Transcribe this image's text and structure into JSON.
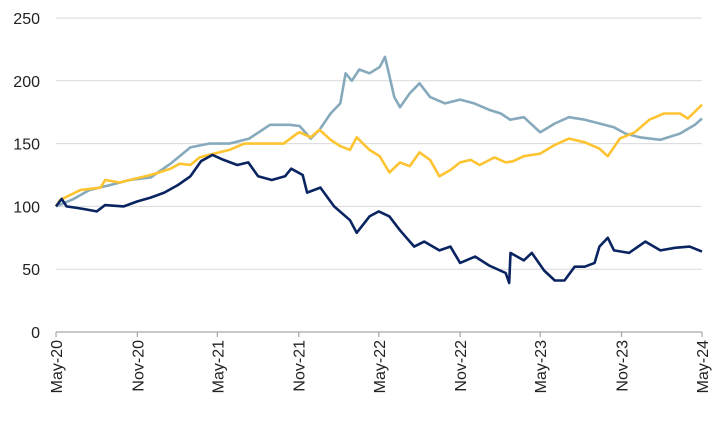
{
  "chart_data": {
    "type": "line",
    "title": "",
    "xlabel": "",
    "ylabel": "",
    "ylim": [
      0,
      250
    ],
    "yticks": [
      0,
      50,
      100,
      150,
      200,
      250
    ],
    "xlim": [
      "2020-05-01",
      "2024-05-01"
    ],
    "xticks": [
      {
        "date": "2020-05-01",
        "label": "May-20"
      },
      {
        "date": "2020-11-01",
        "label": "Nov-20"
      },
      {
        "date": "2021-05-01",
        "label": "May-21"
      },
      {
        "date": "2021-11-01",
        "label": "Nov-21"
      },
      {
        "date": "2022-05-01",
        "label": "May-22"
      },
      {
        "date": "2022-11-01",
        "label": "Nov-22"
      },
      {
        "date": "2023-05-01",
        "label": "May-23"
      },
      {
        "date": "2023-11-01",
        "label": "Nov-23"
      },
      {
        "date": "2024-05-01",
        "label": "May-24"
      }
    ],
    "grid": "horizontal",
    "legend": "none",
    "series": [
      {
        "color": "#86a9bc",
        "points": [
          [
            "2020-05-01",
            100
          ],
          [
            "2020-06-10",
            106
          ],
          [
            "2020-07-15",
            113
          ],
          [
            "2020-09-01",
            117
          ],
          [
            "2020-10-15",
            121
          ],
          [
            "2020-12-01",
            123
          ],
          [
            "2021-01-15",
            134
          ],
          [
            "2021-03-01",
            147
          ],
          [
            "2021-04-12",
            150
          ],
          [
            "2021-05-28",
            150
          ],
          [
            "2021-07-12",
            154
          ],
          [
            "2021-08-28",
            165
          ],
          [
            "2021-10-12",
            165
          ],
          [
            "2021-11-03",
            164
          ],
          [
            "2021-11-28",
            154
          ],
          [
            "2021-12-18",
            161
          ],
          [
            "2022-01-12",
            174
          ],
          [
            "2022-02-03",
            182
          ],
          [
            "2022-02-15",
            206
          ],
          [
            "2022-03-01",
            200
          ],
          [
            "2022-03-18",
            209
          ],
          [
            "2022-04-10",
            206
          ],
          [
            "2022-05-03",
            211
          ],
          [
            "2022-05-15",
            219
          ],
          [
            "2022-06-05",
            187
          ],
          [
            "2022-06-18",
            179
          ],
          [
            "2022-07-10",
            190
          ],
          [
            "2022-08-01",
            198
          ],
          [
            "2022-08-25",
            187
          ],
          [
            "2022-09-28",
            182
          ],
          [
            "2022-11-01",
            185
          ],
          [
            "2022-12-03",
            182
          ],
          [
            "2023-01-05",
            177
          ],
          [
            "2023-02-01",
            174
          ],
          [
            "2023-02-22",
            169
          ],
          [
            "2023-03-25",
            171
          ],
          [
            "2023-05-01",
            159
          ],
          [
            "2023-06-03",
            166
          ],
          [
            "2023-07-05",
            171
          ],
          [
            "2023-08-10",
            169
          ],
          [
            "2023-09-12",
            166
          ],
          [
            "2023-10-15",
            163
          ],
          [
            "2023-11-10",
            158
          ],
          [
            "2023-12-12",
            155
          ],
          [
            "2024-01-28",
            153
          ],
          [
            "2024-03-12",
            158
          ],
          [
            "2024-04-15",
            165
          ],
          [
            "2024-05-01",
            170
          ]
        ]
      },
      {
        "color": "#fdc331",
        "points": [
          [
            "2020-05-01",
            100
          ],
          [
            "2020-05-10",
            105
          ],
          [
            "2020-06-25",
            113
          ],
          [
            "2020-08-10",
            115
          ],
          [
            "2020-08-20",
            121
          ],
          [
            "2020-09-22",
            119
          ],
          [
            "2020-10-15",
            121
          ],
          [
            "2020-12-01",
            125
          ],
          [
            "2020-12-20",
            127
          ],
          [
            "2021-01-15",
            130
          ],
          [
            "2021-02-05",
            134
          ],
          [
            "2021-03-01",
            133
          ],
          [
            "2021-03-22",
            139
          ],
          [
            "2021-04-12",
            141
          ],
          [
            "2021-05-28",
            145
          ],
          [
            "2021-07-01",
            150
          ],
          [
            "2021-09-28",
            150
          ],
          [
            "2021-10-28",
            158
          ],
          [
            "2021-11-03",
            159
          ],
          [
            "2021-11-28",
            155
          ],
          [
            "2021-12-18",
            161
          ],
          [
            "2022-01-12",
            153
          ],
          [
            "2022-02-03",
            148
          ],
          [
            "2022-02-25",
            145
          ],
          [
            "2022-03-12",
            155
          ],
          [
            "2022-04-10",
            145
          ],
          [
            "2022-05-03",
            140
          ],
          [
            "2022-05-25",
            127
          ],
          [
            "2022-06-18",
            135
          ],
          [
            "2022-07-10",
            132
          ],
          [
            "2022-08-01",
            143
          ],
          [
            "2022-08-25",
            137
          ],
          [
            "2022-09-15",
            124
          ],
          [
            "2022-10-10",
            129
          ],
          [
            "2022-11-01",
            135
          ],
          [
            "2022-11-25",
            137
          ],
          [
            "2022-12-15",
            133
          ],
          [
            "2023-01-18",
            139
          ],
          [
            "2023-02-12",
            135
          ],
          [
            "2023-03-01",
            136
          ],
          [
            "2023-03-25",
            140
          ],
          [
            "2023-05-01",
            142
          ],
          [
            "2023-06-03",
            149
          ],
          [
            "2023-07-05",
            154
          ],
          [
            "2023-08-10",
            151
          ],
          [
            "2023-09-12",
            146
          ],
          [
            "2023-10-01",
            140
          ],
          [
            "2023-10-28",
            154
          ],
          [
            "2023-12-01",
            159
          ],
          [
            "2024-01-03",
            169
          ],
          [
            "2024-02-05",
            174
          ],
          [
            "2024-03-12",
            174
          ],
          [
            "2024-03-30",
            170
          ],
          [
            "2024-05-01",
            181
          ]
        ]
      },
      {
        "color": "#0a2461",
        "points": [
          [
            "2020-05-01",
            100
          ],
          [
            "2020-05-14",
            106
          ],
          [
            "2020-05-25",
            100
          ],
          [
            "2020-07-01",
            98
          ],
          [
            "2020-08-01",
            96
          ],
          [
            "2020-08-20",
            101
          ],
          [
            "2020-10-01",
            100
          ],
          [
            "2020-11-01",
            104
          ],
          [
            "2020-12-01",
            107
          ],
          [
            "2021-01-01",
            111
          ],
          [
            "2021-02-01",
            117
          ],
          [
            "2021-03-01",
            124
          ],
          [
            "2021-03-25",
            136
          ],
          [
            "2021-04-20",
            141
          ],
          [
            "2021-05-15",
            137
          ],
          [
            "2021-06-15",
            133
          ],
          [
            "2021-07-10",
            135
          ],
          [
            "2021-08-01",
            124
          ],
          [
            "2021-09-01",
            121
          ],
          [
            "2021-10-01",
            124
          ],
          [
            "2021-10-15",
            130
          ],
          [
            "2021-11-10",
            125
          ],
          [
            "2021-11-20",
            111
          ],
          [
            "2021-12-20",
            115
          ],
          [
            "2022-01-20",
            100
          ],
          [
            "2022-02-25",
            89
          ],
          [
            "2022-03-12",
            79
          ],
          [
            "2022-04-10",
            92
          ],
          [
            "2022-05-01",
            96
          ],
          [
            "2022-05-25",
            92
          ],
          [
            "2022-06-18",
            81
          ],
          [
            "2022-07-20",
            68
          ],
          [
            "2022-08-12",
            72
          ],
          [
            "2022-09-15",
            65
          ],
          [
            "2022-10-10",
            68
          ],
          [
            "2022-11-01",
            55
          ],
          [
            "2022-12-05",
            60
          ],
          [
            "2023-01-05",
            53
          ],
          [
            "2023-02-12",
            47
          ],
          [
            "2023-02-20",
            39
          ],
          [
            "2023-02-23",
            63
          ],
          [
            "2023-03-25",
            57
          ],
          [
            "2023-04-12",
            63
          ],
          [
            "2023-05-10",
            49
          ],
          [
            "2023-06-03",
            41
          ],
          [
            "2023-06-25",
            41
          ],
          [
            "2023-07-18",
            52
          ],
          [
            "2023-08-10",
            52
          ],
          [
            "2023-09-01",
            55
          ],
          [
            "2023-09-12",
            68
          ],
          [
            "2023-10-01",
            75
          ],
          [
            "2023-10-15",
            65
          ],
          [
            "2023-11-18",
            63
          ],
          [
            "2023-12-25",
            72
          ],
          [
            "2024-01-28",
            65
          ],
          [
            "2024-03-01",
            67
          ],
          [
            "2024-04-03",
            68
          ],
          [
            "2024-05-01",
            64
          ]
        ]
      }
    ]
  }
}
